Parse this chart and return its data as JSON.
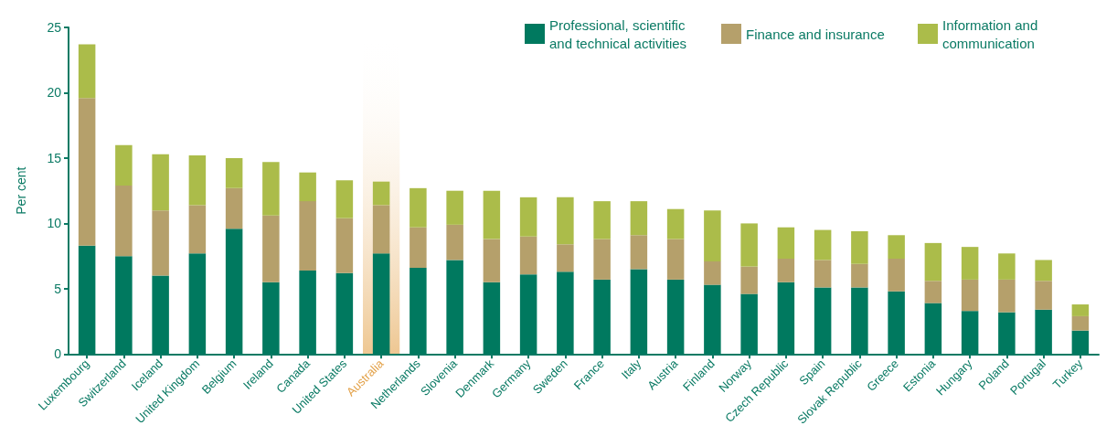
{
  "chart_data": {
    "type": "bar",
    "stacked": true,
    "ylabel": "Per cent",
    "ylim": [
      0,
      25
    ],
    "yticks": [
      0,
      5,
      10,
      15,
      20,
      25
    ],
    "grid": false,
    "legend": "top right",
    "categories": [
      "Luxembourg",
      "Switzerland",
      "Iceland",
      "United Kingdom",
      "Belgium",
      "Ireland",
      "Canada",
      "United States",
      "Australia",
      "Netherlands",
      "Slovenia",
      "Denmark",
      "Germany",
      "Sweden",
      "France",
      "Italy",
      "Austria",
      "Finland",
      "Norway",
      "Czech Republic",
      "Spain",
      "Slovak Republic",
      "Greece",
      "Estonia",
      "Hungary",
      "Poland",
      "Portugal",
      "Turkey"
    ],
    "bands": [
      {
        "axis": "x",
        "from": "Australia",
        "to": "Australia",
        "color": "#e3a24a"
      }
    ],
    "series": [
      {
        "name": "Professional, scientific and technical activities",
        "color": "#00795f",
        "values": [
          8.3,
          7.5,
          6.0,
          7.7,
          9.6,
          5.5,
          6.4,
          6.2,
          7.7,
          6.6,
          7.2,
          5.5,
          6.1,
          6.3,
          5.7,
          6.5,
          5.7,
          5.3,
          4.6,
          5.5,
          5.1,
          5.1,
          4.8,
          3.9,
          3.3,
          3.2,
          3.4,
          1.8
        ]
      },
      {
        "name": "Finance and insurance",
        "color": "#b5a06b",
        "values": [
          11.3,
          5.4,
          5.0,
          3.7,
          3.1,
          5.1,
          5.3,
          4.2,
          3.7,
          3.1,
          2.7,
          3.3,
          2.9,
          2.1,
          3.1,
          2.6,
          3.1,
          1.8,
          2.1,
          1.8,
          2.1,
          1.8,
          2.5,
          1.7,
          2.4,
          2.5,
          2.2,
          1.1
        ]
      },
      {
        "name": "Information and communication",
        "color": "#abbc4a",
        "values": [
          4.1,
          3.1,
          4.3,
          3.8,
          2.3,
          4.1,
          2.2,
          2.9,
          1.8,
          3.0,
          2.6,
          3.7,
          3.0,
          3.6,
          2.9,
          2.6,
          2.3,
          3.9,
          3.3,
          2.4,
          2.3,
          2.5,
          1.8,
          2.9,
          2.5,
          2.0,
          1.6,
          0.9
        ]
      }
    ]
  }
}
